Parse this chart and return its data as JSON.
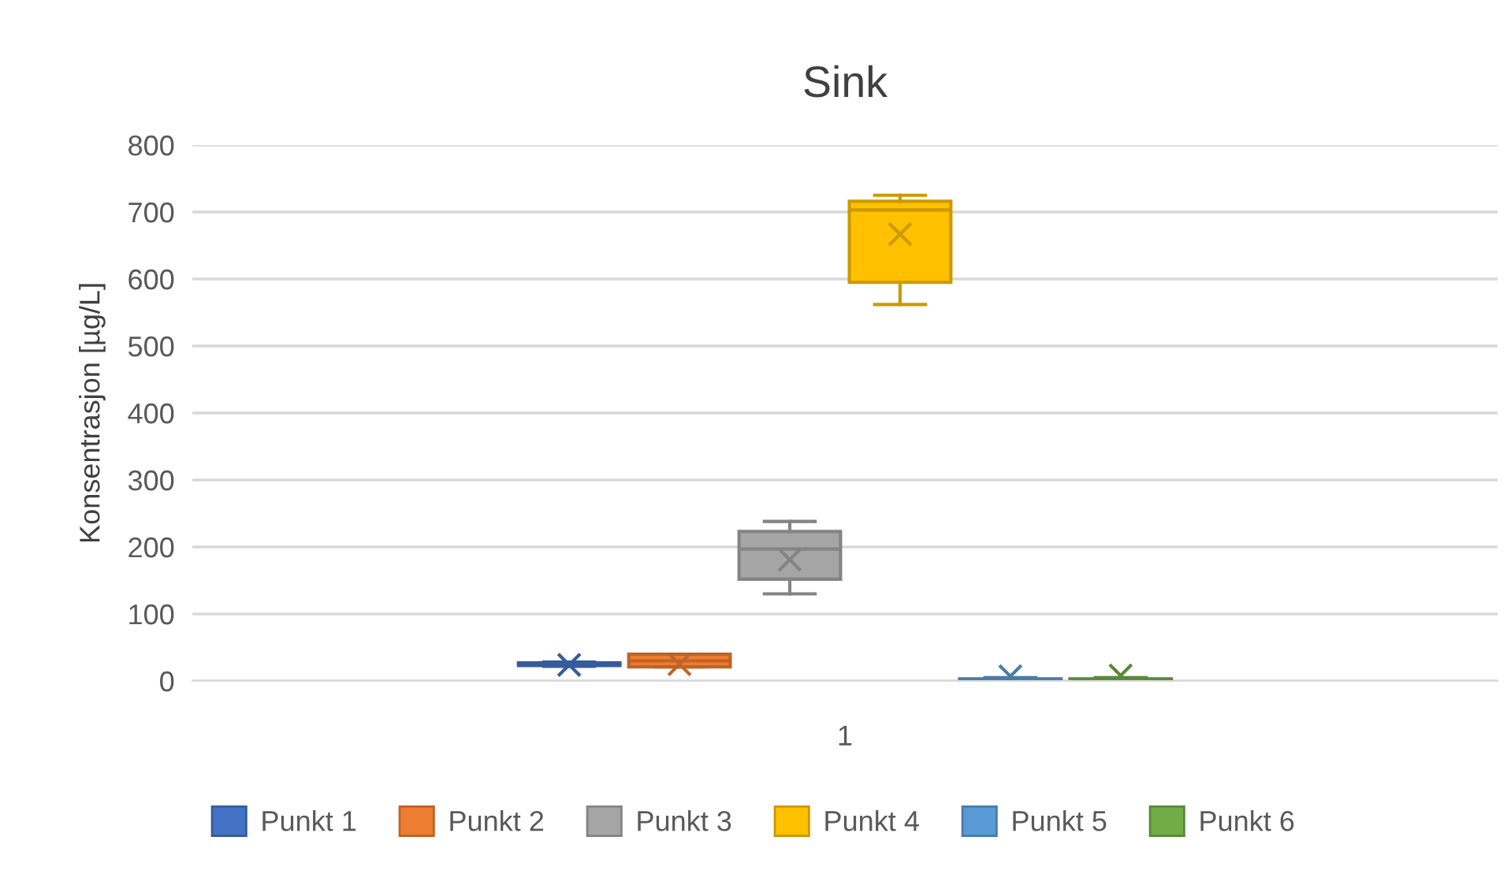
{
  "chart_data": {
    "type": "box",
    "title": "Sink",
    "ylabel": "Konsentrasjon [µg/L]",
    "categories": [
      "1"
    ],
    "ylim": [
      0,
      800
    ],
    "yticks": [
      0,
      100,
      200,
      300,
      400,
      500,
      600,
      700,
      800
    ],
    "grid": "y",
    "legend": "bottom",
    "marker": "cross",
    "series": [
      {
        "name": "Punkt 1",
        "color": "#4472c4",
        "boxes": [
          {
            "low": 22,
            "q1": 23,
            "median": 25,
            "q3": 27,
            "high": 28,
            "mean": 24
          }
        ]
      },
      {
        "name": "Punkt 2",
        "color": "#ed7d31",
        "boxes": [
          {
            "low": 21,
            "q1": 21,
            "median": 30,
            "q3": 40,
            "high": 40,
            "mean": 25
          }
        ]
      },
      {
        "name": "Punkt 3",
        "color": "#a5a5a5",
        "boxes": [
          {
            "low": 130,
            "q1": 152,
            "median": 197,
            "q3": 223,
            "high": 238,
            "mean": 181
          }
        ]
      },
      {
        "name": "Punkt 4",
        "color": "#ffc000",
        "boxes": [
          {
            "low": 562,
            "q1": 595,
            "median": 703,
            "q3": 716,
            "high": 725,
            "mean": 667
          }
        ]
      },
      {
        "name": "Punkt 5",
        "color": "#5b9bd5",
        "boxes": [
          {
            "low": 0,
            "q1": 1,
            "median": 2,
            "q3": 3,
            "high": 5,
            "mean": 7
          }
        ]
      },
      {
        "name": "Punkt 6",
        "color": "#70ad47",
        "boxes": [
          {
            "low": 0,
            "q1": 1,
            "median": 2,
            "q3": 3,
            "high": 5,
            "mean": 8
          }
        ]
      }
    ]
  }
}
